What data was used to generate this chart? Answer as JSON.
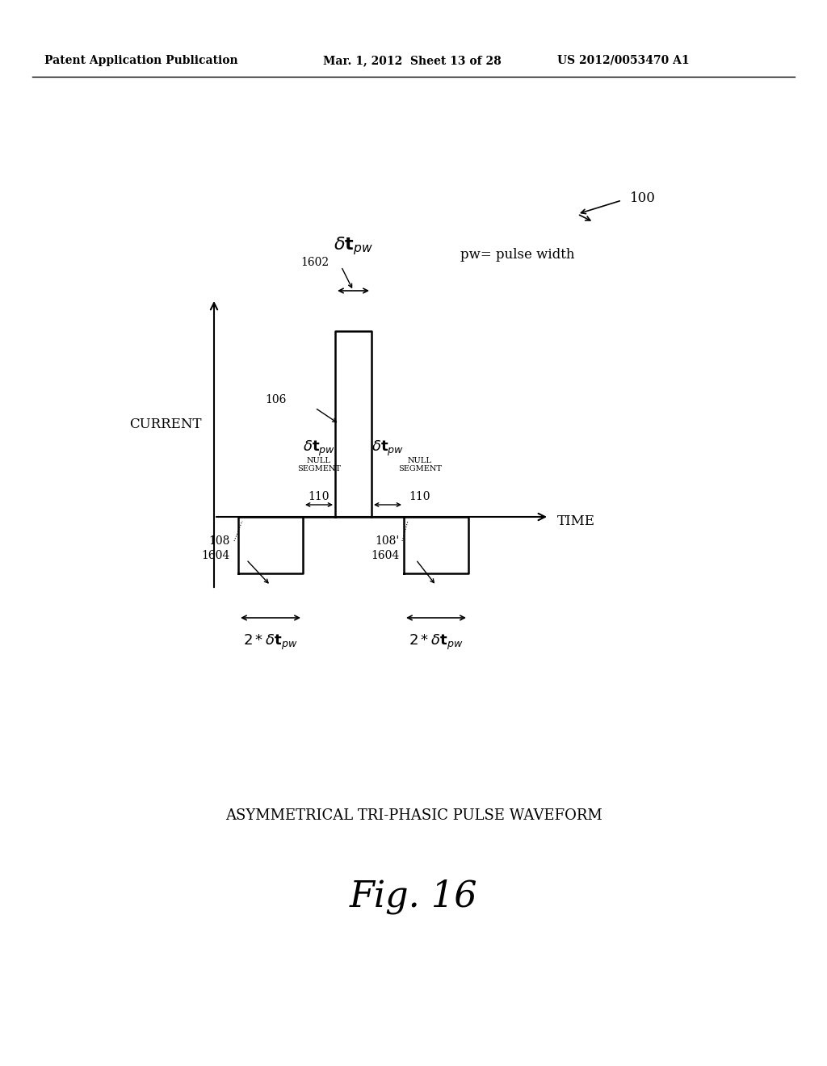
{
  "bg_color": "#ffffff",
  "header_left": "Patent Application Publication",
  "header_mid": "Mar. 1, 2012  Sheet 13 of 28",
  "header_right": "US 2012/0053470 A1",
  "fig_label": "Fig. 16",
  "caption": "Asymmetrical Tri-phasic Pulse waveform",
  "ref_number": "100",
  "current_label": "Current",
  "time_label": "Time",
  "pw_label": "pw= pulse width",
  "delta_tpw_label": "δt",
  "pw_sub": "pw"
}
